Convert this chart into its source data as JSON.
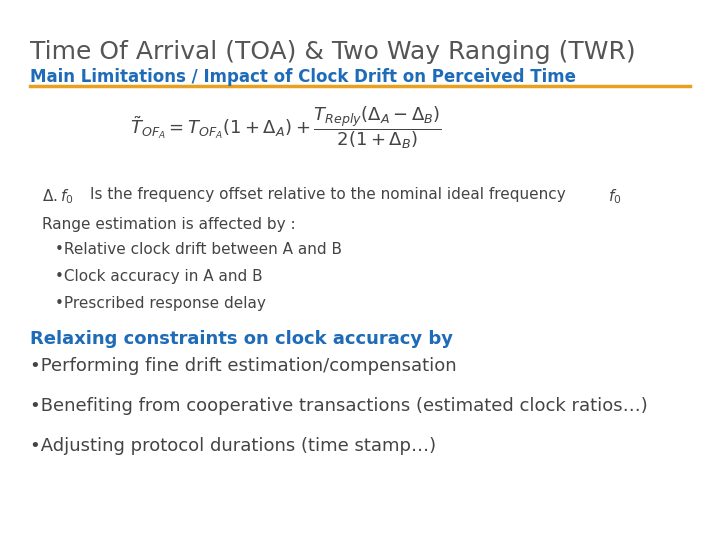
{
  "title": "Time Of Arrival (TOA) & Two Way Ranging (TWR)",
  "subtitle": "Main Limitations / Impact of Clock Drift on Perceived Time",
  "title_color": "#555555",
  "subtitle_color": "#1E6BB8",
  "subtitle_underline_color": "#E8A020",
  "bg_color": "#FFFFFF",
  "range_estimation": "Range estimation is affected by :",
  "bullets_indented": [
    "•Relative clock drift between A and B",
    "•Clock accuracy in A and B",
    "•Prescribed response delay"
  ],
  "relaxing_header": "Relaxing constraints on clock accuracy by",
  "relaxing_color": "#1E6BB8",
  "bullets_main": [
    "•Performing fine drift estimation/compensation",
    "•Benefiting from cooperative transactions (estimated clock ratios…)",
    "•Adjusting protocol durations (time stamp…)"
  ],
  "text_color": "#444444",
  "title_fontsize": 18,
  "subtitle_fontsize": 12,
  "formula_fontsize": 13,
  "note_fontsize": 11,
  "range_fontsize": 11,
  "indent_bullet_fontsize": 11,
  "relax_fontsize": 13,
  "main_bullet_fontsize": 13
}
